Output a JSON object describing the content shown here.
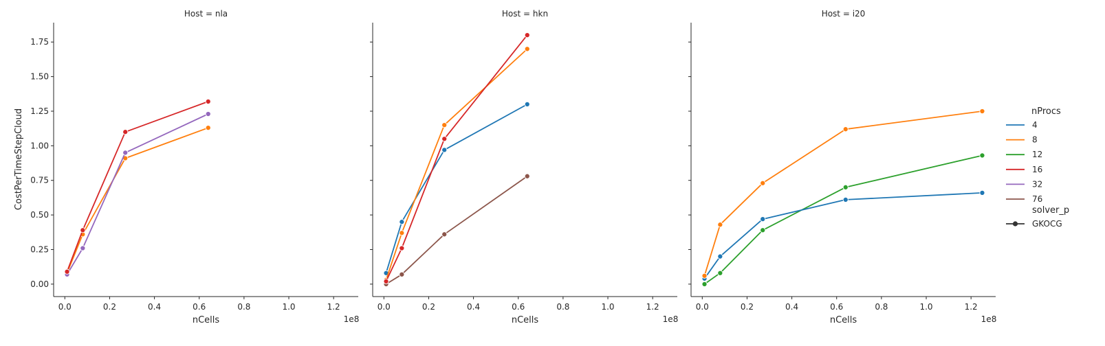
{
  "chart_data": {
    "type": "line",
    "ylabel": "CostPerTimeStepCloud",
    "xlabel": "nCells",
    "x_offset_label": "1e8",
    "x_scale": 100000000,
    "xlim": [
      -0.05,
      1.31
    ],
    "ylim": [
      -0.09,
      1.89
    ],
    "x_ticks": [
      0.0,
      0.2,
      0.4,
      0.6,
      0.8,
      1.0,
      1.2
    ],
    "x_tick_labels": [
      "0.0",
      "0.2",
      "0.4",
      "0.6",
      "0.8",
      "1.0",
      "1.2"
    ],
    "y_ticks": [
      0.0,
      0.25,
      0.5,
      0.75,
      1.0,
      1.25,
      1.5,
      1.75
    ],
    "y_tick_labels": [
      "0.00",
      "0.25",
      "0.50",
      "0.75",
      "1.00",
      "1.25",
      "1.50",
      "1.75"
    ],
    "legend": {
      "title": "nProcs",
      "entries": [
        {
          "label": "4",
          "color": "#1f77b4"
        },
        {
          "label": "8",
          "color": "#ff7f0e"
        },
        {
          "label": "12",
          "color": "#2ca02c"
        },
        {
          "label": "16",
          "color": "#d62728"
        },
        {
          "label": "32",
          "color": "#9467bd"
        },
        {
          "label": "76",
          "color": "#8c564b"
        }
      ],
      "style_title": "solver_p",
      "style_entries": [
        {
          "label": "GKOCG",
          "color": "#333333"
        }
      ]
    },
    "panels": [
      {
        "title": "Host = nla",
        "series": [
          {
            "name": "8",
            "color": "#ff7f0e",
            "points": [
              [
                0.01,
                0.08
              ],
              [
                0.08,
                0.36
              ],
              [
                0.27,
                0.91
              ],
              [
                0.64,
                1.13
              ]
            ]
          },
          {
            "name": "32",
            "color": "#9467bd",
            "points": [
              [
                0.01,
                0.07
              ],
              [
                0.08,
                0.26
              ],
              [
                0.27,
                0.95
              ],
              [
                0.64,
                1.23
              ]
            ]
          },
          {
            "name": "16",
            "color": "#d62728",
            "points": [
              [
                0.01,
                0.09
              ],
              [
                0.08,
                0.39
              ],
              [
                0.27,
                1.1
              ],
              [
                0.64,
                1.32
              ]
            ]
          }
        ]
      },
      {
        "title": "Host = hkn",
        "series": [
          {
            "name": "4",
            "color": "#1f77b4",
            "points": [
              [
                0.01,
                0.08
              ],
              [
                0.08,
                0.45
              ],
              [
                0.27,
                0.97
              ],
              [
                0.64,
                1.3
              ]
            ]
          },
          {
            "name": "8",
            "color": "#ff7f0e",
            "points": [
              [
                0.01,
                0.03
              ],
              [
                0.08,
                0.37
              ],
              [
                0.27,
                1.15
              ],
              [
                0.64,
                1.7
              ]
            ]
          },
          {
            "name": "76",
            "color": "#8c564b",
            "points": [
              [
                0.01,
                0.0
              ],
              [
                0.08,
                0.07
              ],
              [
                0.27,
                0.36
              ],
              [
                0.64,
                0.78
              ]
            ]
          },
          {
            "name": "16",
            "color": "#d62728",
            "points": [
              [
                0.01,
                0.02
              ],
              [
                0.08,
                0.26
              ],
              [
                0.27,
                1.05
              ],
              [
                0.64,
                1.8
              ]
            ]
          }
        ]
      },
      {
        "title": "Host = i20",
        "series": [
          {
            "name": "12",
            "color": "#2ca02c",
            "points": [
              [
                0.01,
                0.0
              ],
              [
                0.08,
                0.08
              ],
              [
                0.27,
                0.39
              ],
              [
                0.64,
                0.7
              ],
              [
                1.25,
                0.93
              ]
            ]
          },
          {
            "name": "4",
            "color": "#1f77b4",
            "points": [
              [
                0.01,
                0.04
              ],
              [
                0.08,
                0.2
              ],
              [
                0.27,
                0.47
              ],
              [
                0.64,
                0.61
              ],
              [
                1.25,
                0.66
              ]
            ]
          },
          {
            "name": "8",
            "color": "#ff7f0e",
            "points": [
              [
                0.01,
                0.06
              ],
              [
                0.08,
                0.43
              ],
              [
                0.27,
                0.73
              ],
              [
                0.64,
                1.12
              ],
              [
                1.25,
                1.25
              ]
            ]
          }
        ]
      }
    ]
  }
}
